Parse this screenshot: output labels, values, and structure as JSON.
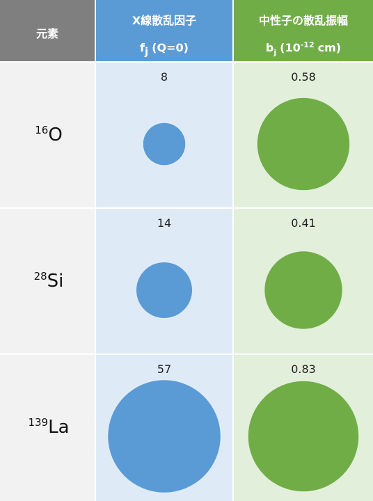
{
  "header": {
    "element": "元素",
    "xray": {
      "title": "X線散乱因子",
      "symbol": "f",
      "subscript": "j",
      "condition": "(Q=0)"
    },
    "neutron": {
      "title": "中性子の散乱振幅",
      "symbol": "b",
      "subscript": "j",
      "unit_prefix": "(10",
      "exponent": "-12",
      "unit_suffix": "cm)"
    }
  },
  "rows": [
    {
      "mass_number": "16",
      "symbol": "O",
      "xray_factor": 8,
      "neutron_length": 0.58
    },
    {
      "mass_number": "28",
      "symbol": "Si",
      "xray_factor": 14,
      "neutron_length": 0.41
    },
    {
      "mass_number": "139",
      "symbol": "La",
      "xray_factor": 57,
      "neutron_length": 0.83
    }
  ]
}
